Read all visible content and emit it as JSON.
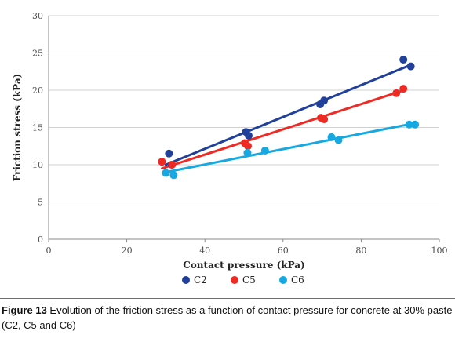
{
  "chart_data": {
    "type": "scatter",
    "xlabel": "Contact pressure (kPa)",
    "ylabel": "Friction stress (kPa)",
    "xlim": [
      0,
      100
    ],
    "ylim": [
      0,
      30
    ],
    "x_ticks": [
      0,
      20,
      40,
      60,
      80,
      100
    ],
    "y_ticks": [
      0,
      5,
      10,
      15,
      20,
      25,
      30
    ],
    "grid": "horizontal",
    "legend": "bottom",
    "series": [
      {
        "name": "C2",
        "color": "#21409a",
        "points": [
          [
            30.8,
            11.5
          ],
          [
            31.5,
            10.0
          ],
          [
            50.5,
            14.4
          ],
          [
            51.2,
            13.9
          ],
          [
            69.5,
            18.1
          ],
          [
            70.5,
            18.6
          ],
          [
            90.8,
            24.1
          ],
          [
            92.7,
            23.2
          ]
        ],
        "fit": [
          [
            30,
            10.0
          ],
          [
            92.7,
            23.4
          ]
        ]
      },
      {
        "name": "C5",
        "color": "#ee2a24",
        "points": [
          [
            29.0,
            10.4
          ],
          [
            31.6,
            10.0
          ],
          [
            50.2,
            12.9
          ],
          [
            51.0,
            12.5
          ],
          [
            69.7,
            16.3
          ],
          [
            70.5,
            16.1
          ],
          [
            89.0,
            19.6
          ],
          [
            90.8,
            20.2
          ]
        ],
        "fit": [
          [
            29,
            9.5
          ],
          [
            91,
            20.0
          ]
        ]
      },
      {
        "name": "C6",
        "color": "#16a9e1",
        "points": [
          [
            30.0,
            8.9
          ],
          [
            32.0,
            8.6
          ],
          [
            50.9,
            11.6
          ],
          [
            55.4,
            11.9
          ],
          [
            72.4,
            13.7
          ],
          [
            74.2,
            13.3
          ],
          [
            92.3,
            15.4
          ],
          [
            93.8,
            15.4
          ]
        ],
        "fit": [
          [
            30,
            9.0
          ],
          [
            94,
            15.6
          ]
        ]
      }
    ]
  },
  "caption": {
    "label": "Figure 13",
    "text": " Evolution of the friction stress as a function of contact pressure for concrete at 30% paste (C2, C5 and C6)"
  }
}
